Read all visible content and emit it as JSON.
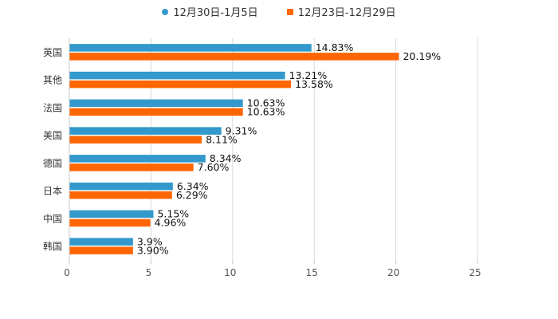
{
  "chart_data": {
    "type": "bar",
    "orientation": "horizontal",
    "categories": [
      "英国",
      "其他",
      "法国",
      "美国",
      "德国",
      "日本",
      "中国",
      "韩国"
    ],
    "series": [
      {
        "name": "12月30日-1月5日",
        "color": "#3399cc",
        "marker": "circle",
        "values": [
          14.83,
          13.21,
          10.63,
          9.31,
          8.34,
          6.34,
          5.15,
          3.9
        ],
        "labels": [
          "14.83%",
          "13.21%",
          "10.63%",
          "9.31%",
          "8.34%",
          "6.34%",
          "5.15%",
          "3.9%"
        ]
      },
      {
        "name": "12月23日-12月29日",
        "color": "#ff6600",
        "marker": "square",
        "values": [
          20.19,
          13.58,
          10.63,
          8.11,
          7.6,
          6.29,
          4.96,
          3.9
        ],
        "labels": [
          "20.19%",
          "13.58%",
          "10.63%",
          "8.11%",
          "7.60%",
          "6.29%",
          "4.96%",
          "3.90%"
        ]
      }
    ],
    "xlim": [
      0,
      25
    ],
    "xticks": [
      0,
      5,
      10,
      15,
      20,
      25
    ],
    "grid": true,
    "legend": "top-center",
    "title": "",
    "xlabel": "",
    "ylabel": ""
  }
}
